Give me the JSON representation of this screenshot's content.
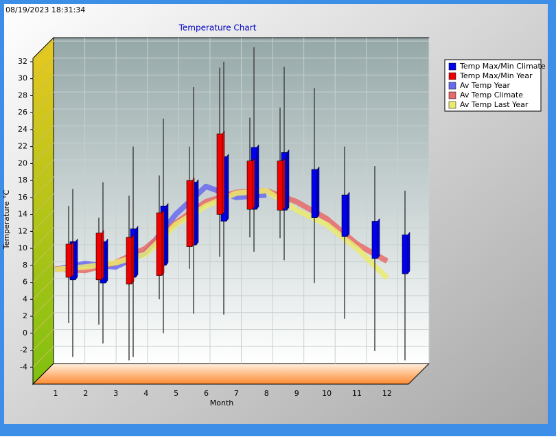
{
  "chart_data": {
    "type": "candlestick",
    "timestamp": "08/19/2023 18:31:34",
    "title": "Temperature Chart",
    "x_label": "Month",
    "y_label": "Temperature °C",
    "categories": [
      "1",
      "2",
      "3",
      "4",
      "5",
      "6",
      "7",
      "8",
      "9",
      "10",
      "11",
      "12"
    ],
    "ylim": [
      -6,
      32.4
    ],
    "yticks": [
      -4,
      -2,
      0,
      2,
      4,
      6,
      8,
      10,
      12,
      14,
      16,
      18,
      20,
      22,
      24,
      26,
      28,
      30,
      32
    ],
    "grid": true,
    "legend": "right",
    "series": [
      {
        "name": "Temp Max/Min Climate",
        "kind": "candlestick",
        "color": "#0000ee",
        "whisker_high": [
          17,
          17.8,
          22,
          25.3,
          29,
          32,
          33.7,
          31.4,
          28.9,
          22,
          19.7,
          16.8
        ],
        "box_high": [
          10.8,
          10.8,
          12.3,
          15,
          17.8,
          20.8,
          21.9,
          21.3,
          19.3,
          16.3,
          13.2,
          11.6
        ],
        "box_low": [
          6.3,
          5.9,
          6.6,
          8,
          10.4,
          13.2,
          14.6,
          14.5,
          13.6,
          11.4,
          8.8,
          7
        ],
        "whisker_low": [
          -2.8,
          -1.2,
          -2.8,
          0,
          2.3,
          2.2,
          9.6,
          8.6,
          5.9,
          1.7,
          -2.1,
          -3.2
        ]
      },
      {
        "name": "Temp Max/Min Year",
        "kind": "candlestick",
        "color": "#ee0000",
        "whisker_high": [
          15,
          13.6,
          16.2,
          18.6,
          22,
          31.3,
          25.4,
          26.6,
          null,
          null,
          null,
          null
        ],
        "box_high": [
          10.5,
          11.8,
          11.3,
          14.2,
          18,
          23.5,
          20.3,
          20.3,
          null,
          null,
          null,
          null
        ],
        "box_low": [
          6.6,
          6.3,
          5.8,
          6.8,
          10.2,
          14,
          14.6,
          14.5,
          null,
          null,
          null,
          null
        ],
        "whisker_low": [
          1.2,
          1,
          -3.2,
          4,
          7.6,
          9,
          11.3,
          11.2,
          null,
          null,
          null,
          null
        ]
      },
      {
        "name": "Av Temp Year",
        "kind": "line",
        "color": "#6a6af0",
        "values": [
          7.5,
          8.2,
          7.8,
          9.5,
          14,
          17.3,
          16,
          16.3,
          null,
          null,
          null,
          null
        ]
      },
      {
        "name": "Av Temp Climate",
        "kind": "line",
        "color": "#e86a6a",
        "values": [
          7.6,
          7.4,
          8.3,
          10,
          13,
          15.5,
          16.6,
          16.8,
          15.5,
          13.5,
          10.5,
          8.5
        ]
      },
      {
        "name": "Av Temp Last Year",
        "kind": "line",
        "color": "#eaea70",
        "values": [
          7.5,
          7.8,
          8.3,
          9.3,
          12.8,
          15,
          16.5,
          16.8,
          14.5,
          12.8,
          10,
          6.5
        ]
      }
    ]
  }
}
